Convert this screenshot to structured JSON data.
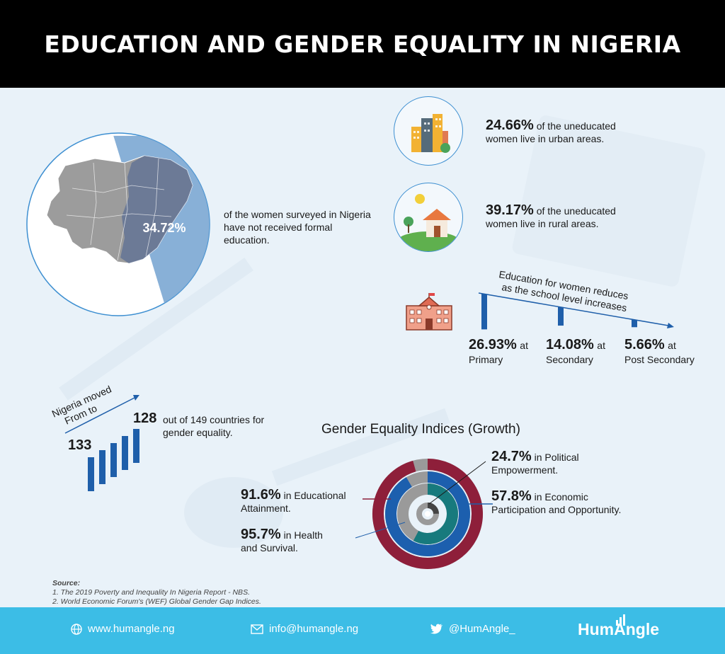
{
  "title": "EDUCATION AND GENDER EQUALITY IN NIGERIA",
  "map_stat": {
    "value": "34.72%",
    "text": "of the women surveyed in Nigeria have not received formal education."
  },
  "urban": {
    "value": "24.66%",
    "text_a": " of the uneducated",
    "text_b": "women live in urban areas."
  },
  "rural": {
    "value": "39.17%",
    "text_a": " of the uneducated",
    "text_b": "women live in rural areas."
  },
  "school_levels": {
    "caption_line1": "Education for women reduces",
    "caption_line2": "as the school level increases",
    "items": [
      {
        "value": "26.93%",
        "at": "at",
        "label": "Primary"
      },
      {
        "value": "14.08%",
        "at": "at",
        "label": "Secondary"
      },
      {
        "value": "5.66%",
        "at": "at",
        "label": "Post Secondary"
      }
    ]
  },
  "ranking": {
    "moved_line1": "Nigeria moved",
    "moved_line2": "From to",
    "from": "133",
    "to": "128",
    "text": "out of 149 countries for gender equality."
  },
  "gender_title": "Gender Equality Indices (Growth)",
  "indices": [
    {
      "value": "24.7%",
      "label_a": " in Political",
      "label_b": "Empowerment."
    },
    {
      "value": "57.8%",
      "label_a": " in Economic",
      "label_b": "Participation and Opportunity."
    },
    {
      "value": "91.6%",
      "label_a": " in Educational",
      "label_b": "Attainment."
    },
    {
      "value": "95.7%",
      "label_a": " in Health",
      "label_b": "and Survival."
    }
  ],
  "source": {
    "heading": "Source:",
    "line1": "1. The 2019 Poverty and Inequality In Nigeria Report - NBS.",
    "line2": "2. World Economic Forum's (WEF) Global Gender Gap Indices."
  },
  "footer": {
    "website": "www.humangle.ng",
    "email": "info@humangle.ng",
    "twitter": "@HumAngle_",
    "brand": "HumAngle"
  },
  "colors": {
    "header_bg": "#000000",
    "panel_bg": "#e9f2f9",
    "footer_bg": "#3cbde6",
    "bar_blue": "#1f5faa",
    "health": "#8e1f3a",
    "education": "#1c5fae",
    "economic": "#177a7d",
    "political": "#444444"
  },
  "chart_data": [
    {
      "type": "pie",
      "title": "",
      "categories": [
        "Uneducated women"
      ],
      "values": [
        34.72
      ]
    },
    {
      "type": "bar",
      "title": "",
      "caption": "Education for women reduces as the school level increases",
      "categories": [
        "Primary",
        "Secondary",
        "Post Secondary"
      ],
      "values": [
        26.93,
        14.08,
        5.66
      ],
      "unit": "%"
    },
    {
      "type": "pie",
      "subtype": "radial-rings",
      "title": "Gender Equality Indices (Growth)",
      "categories": [
        "Health and Survival",
        "Educational Attainment",
        "Economic Participation and Opportunity",
        "Political Empowerment"
      ],
      "values": [
        95.7,
        91.6,
        57.8,
        24.7
      ],
      "unit": "%"
    }
  ]
}
